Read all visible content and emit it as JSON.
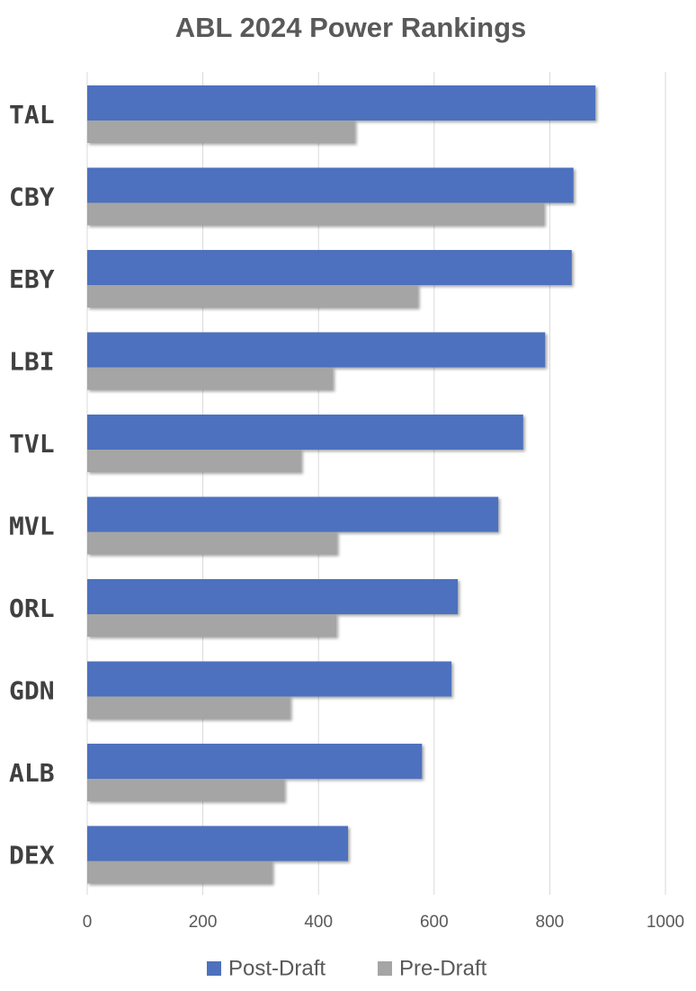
{
  "chart_data": {
    "type": "hbar",
    "title": "ABL 2024 Power Rankings",
    "categories": [
      "TAL",
      "CBY",
      "EBY",
      "LBI",
      "TVL",
      "MVL",
      "ORL",
      "GDN",
      "ALB",
      "DEX"
    ],
    "series": [
      {
        "name": "Post-Draft",
        "color": "#4e71be",
        "values": [
          879,
          841,
          838,
          792,
          754,
          711,
          641,
          630,
          579,
          451
        ]
      },
      {
        "name": "Pre-Draft",
        "color": "#a5a5a5",
        "values": [
          463,
          790,
          572,
          425,
          370,
          432,
          431,
          351,
          341,
          320
        ]
      }
    ],
    "xlim": [
      0,
      1000
    ],
    "xticks": [
      0,
      200,
      400,
      600,
      800,
      1000
    ],
    "grid": true,
    "legend": "bottom"
  }
}
